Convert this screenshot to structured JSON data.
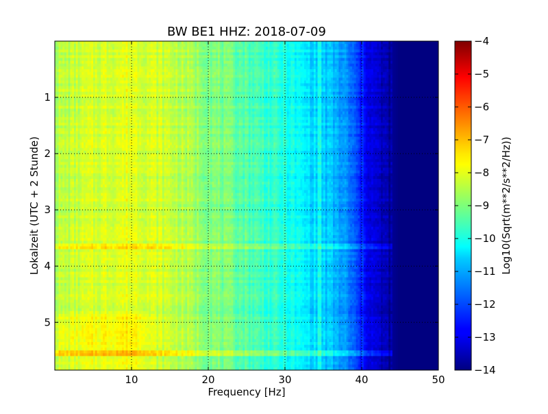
{
  "chart_data": {
    "type": "heatmap",
    "title": "BW BE1 HHZ: 2018-07-09",
    "xlabel": "Frequency [Hz]",
    "ylabel": "Lokalzeit (UTC + 2 Stunde)",
    "colorbar_label": "Log10(Sqrt(m**2/s**2/Hz))",
    "xlim": [
      0,
      50
    ],
    "ylim": [
      5.85,
      0
    ],
    "x_ticks": [
      10,
      20,
      30,
      40,
      50
    ],
    "x_tick_labels": [
      "10",
      "20",
      "30",
      "40",
      "50"
    ],
    "y_ticks": [
      1,
      2,
      3,
      4,
      5
    ],
    "y_tick_labels": [
      "1",
      "2",
      "3",
      "4",
      "5"
    ],
    "colorbar_range": [
      -14,
      -4
    ],
    "colorbar_ticks": [
      -4,
      -5,
      -6,
      -7,
      -8,
      -9,
      -10,
      -11,
      -12,
      -13,
      -14
    ],
    "colorbar_tick_labels": [
      "−4",
      "−5",
      "−6",
      "−7",
      "−8",
      "−9",
      "−10",
      "−11",
      "−12",
      "−13",
      "−14"
    ],
    "colormap": "jet",
    "grid": true,
    "grid_style": "dotted",
    "spectrum_profile": {
      "frequency_hz": [
        0,
        5,
        10,
        15,
        20,
        25,
        30,
        33,
        36,
        38,
        40,
        42,
        44,
        45,
        50
      ],
      "log10_amplitude": [
        -8.5,
        -8.2,
        -8.0,
        -8.3,
        -8.9,
        -9.4,
        -10.0,
        -10.5,
        -10.9,
        -11.4,
        -12.5,
        -13.3,
        -13.8,
        -14,
        -14
      ]
    },
    "notable_features": [
      {
        "type": "horizontal_band",
        "time": 3.63,
        "description": "bright broadband line"
      },
      {
        "type": "horizontal_band",
        "time": 5.55,
        "description": "bright broadband line"
      },
      {
        "type": "vertical_line",
        "frequency_hz": 34.5,
        "description": "narrow spectral line"
      }
    ]
  }
}
